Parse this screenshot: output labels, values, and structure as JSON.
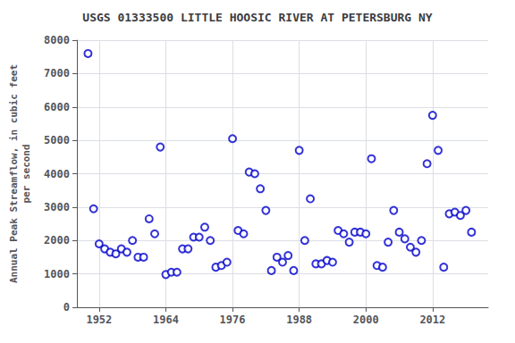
{
  "chart_data": {
    "type": "scatter",
    "title": "USGS 01333500 LITTLE HOOSIC RIVER AT PETERSBURG NY",
    "ylabel": "Annual Peak Streamflow, in cubic feet\nper second",
    "x": [
      1950,
      1951,
      1952,
      1953,
      1954,
      1955,
      1956,
      1957,
      1958,
      1959,
      1960,
      1961,
      1962,
      1963,
      1964,
      1965,
      1966,
      1967,
      1968,
      1969,
      1970,
      1971,
      1972,
      1973,
      1974,
      1975,
      1976,
      1977,
      1978,
      1979,
      1980,
      1981,
      1982,
      1983,
      1984,
      1985,
      1986,
      1987,
      1988,
      1989,
      1990,
      1991,
      1992,
      1993,
      1994,
      1995,
      1996,
      1997,
      1998,
      1999,
      2000,
      2001,
      2002,
      2003,
      2004,
      2005,
      2006,
      2007,
      2008,
      2009,
      2010,
      2011,
      2012,
      2013,
      2014,
      2015,
      2016,
      2017,
      2018,
      2019
    ],
    "values": [
      7600,
      2950,
      1900,
      1750,
      1650,
      1600,
      1750,
      1650,
      2000,
      1500,
      1500,
      2650,
      2200,
      4800,
      980,
      1050,
      1050,
      1750,
      1750,
      2100,
      2100,
      2400,
      2000,
      1200,
      1250,
      1350,
      5050,
      2300,
      2200,
      4050,
      4000,
      3550,
      2900,
      1100,
      1500,
      1350,
      1550,
      1100,
      4700,
      2000,
      3250,
      1300,
      1300,
      1400,
      1350,
      2300,
      2200,
      1950,
      2250,
      2250,
      2200,
      4450,
      1250,
      1200,
      1950,
      2900,
      2250,
      2050,
      1800,
      1650,
      2000,
      4300,
      5750,
      4700,
      1200,
      2800,
      2850,
      2750,
      2900,
      2250
    ],
    "color": "#0000cc",
    "marker": "o",
    "xlim": [
      1948,
      2022
    ],
    "xticks": [
      1952,
      1964,
      1976,
      1988,
      2000,
      2012
    ],
    "ylim": [
      0,
      8000
    ],
    "yticks": [
      0,
      1000,
      2000,
      3000,
      4000,
      5000,
      6000,
      7000,
      8000
    ],
    "grid": true
  }
}
